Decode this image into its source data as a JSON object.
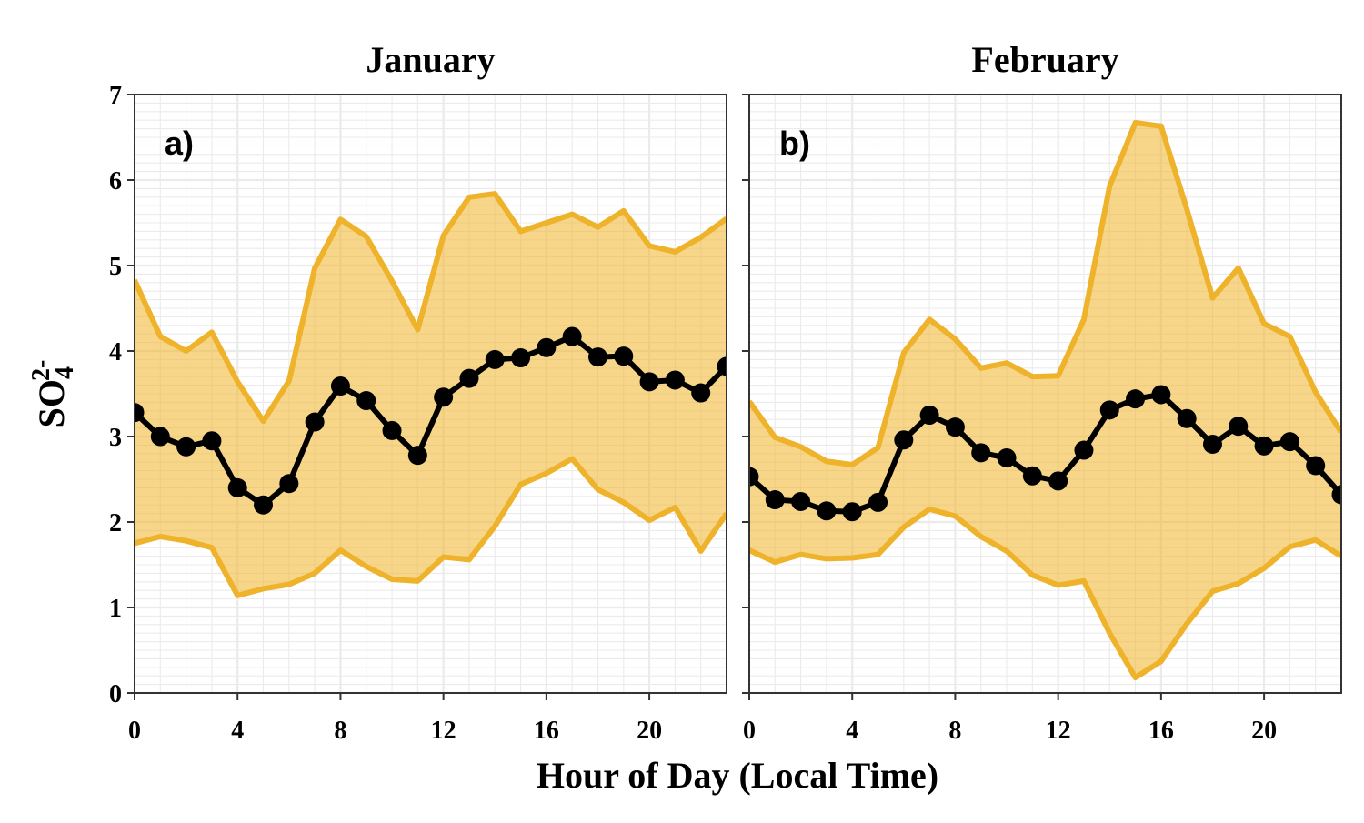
{
  "chart_data": {
    "type": "line",
    "xlabel": "Hour of Day (Local Time)",
    "ylabel": {
      "base": "SO",
      "sub": "4",
      "sup": "2-"
    },
    "xlim": [
      0,
      23
    ],
    "ylim": [
      0,
      7
    ],
    "xticks": [
      0,
      4,
      8,
      12,
      16,
      20
    ],
    "yticks": [
      0,
      1,
      2,
      3,
      4,
      5,
      6,
      7
    ],
    "grid": true,
    "colors": {
      "band_fill": "#f0b429",
      "band_line": "#eeb32b",
      "mean_line": "#000000"
    },
    "panels": [
      {
        "title": "January",
        "tag": "a)",
        "x": [
          0,
          1,
          2,
          3,
          4,
          5,
          6,
          7,
          8,
          9,
          10,
          11,
          12,
          13,
          14,
          15,
          16,
          17,
          18,
          19,
          20,
          21,
          22,
          23
        ],
        "mean": [
          3.28,
          3.0,
          2.88,
          2.95,
          2.4,
          2.2,
          2.45,
          3.17,
          3.59,
          3.42,
          3.07,
          2.78,
          3.46,
          3.68,
          3.9,
          3.92,
          4.04,
          4.17,
          3.93,
          3.94,
          3.64,
          3.66,
          3.51,
          3.82
        ],
        "upper": [
          4.83,
          4.17,
          4.0,
          4.22,
          3.64,
          3.18,
          3.65,
          4.97,
          5.54,
          5.34,
          4.82,
          4.25,
          5.35,
          5.8,
          5.84,
          5.4,
          5.5,
          5.6,
          5.45,
          5.64,
          5.23,
          5.16,
          5.33,
          5.55
        ],
        "lower": [
          1.75,
          1.83,
          1.78,
          1.7,
          1.14,
          1.22,
          1.27,
          1.4,
          1.67,
          1.48,
          1.33,
          1.31,
          1.59,
          1.56,
          1.95,
          2.44,
          2.57,
          2.74,
          2.38,
          2.23,
          2.02,
          2.17,
          1.66,
          2.1
        ]
      },
      {
        "title": "February",
        "tag": "b)",
        "x": [
          0,
          1,
          2,
          3,
          4,
          5,
          6,
          7,
          8,
          9,
          10,
          11,
          12,
          13,
          14,
          15,
          16,
          17,
          18,
          19,
          20,
          21,
          22,
          23
        ],
        "mean": [
          2.53,
          2.26,
          2.24,
          2.13,
          2.12,
          2.23,
          2.96,
          3.25,
          3.11,
          2.81,
          2.75,
          2.54,
          2.48,
          2.84,
          3.31,
          3.44,
          3.49,
          3.21,
          2.91,
          3.12,
          2.89,
          2.94,
          2.66,
          2.32
        ],
        "upper": [
          3.41,
          2.99,
          2.88,
          2.71,
          2.67,
          2.87,
          3.98,
          4.37,
          4.14,
          3.8,
          3.86,
          3.7,
          3.71,
          4.37,
          5.93,
          6.67,
          6.63,
          5.66,
          4.62,
          4.97,
          4.32,
          4.17,
          3.52,
          3.05
        ],
        "lower": [
          1.67,
          1.53,
          1.62,
          1.57,
          1.58,
          1.62,
          1.94,
          2.15,
          2.07,
          1.83,
          1.66,
          1.38,
          1.26,
          1.31,
          0.7,
          0.18,
          0.37,
          0.81,
          1.19,
          1.28,
          1.46,
          1.71,
          1.79,
          1.6
        ]
      }
    ]
  }
}
